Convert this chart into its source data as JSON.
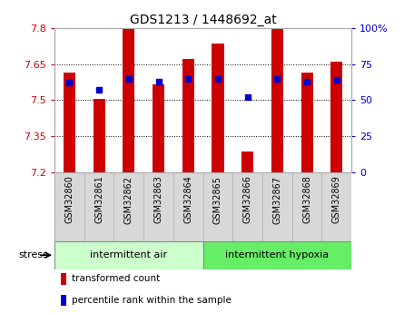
{
  "title": "GDS1213 / 1448692_at",
  "samples": [
    "GSM32860",
    "GSM32861",
    "GSM32862",
    "GSM32863",
    "GSM32864",
    "GSM32865",
    "GSM32866",
    "GSM32867",
    "GSM32868",
    "GSM32869"
  ],
  "bar_values": [
    7.615,
    7.505,
    7.795,
    7.565,
    7.67,
    7.735,
    7.285,
    7.795,
    7.615,
    7.66
  ],
  "blue_values": [
    62,
    57,
    65,
    63,
    65,
    65,
    52,
    65,
    63,
    64
  ],
  "ymin": 7.2,
  "ymax": 7.8,
  "yticks": [
    7.2,
    7.35,
    7.5,
    7.65,
    7.8
  ],
  "ytick_labels": [
    "7.2",
    "7.35",
    "7.5",
    "7.65",
    "7.8"
  ],
  "right_yticks": [
    0,
    25,
    50,
    75,
    100
  ],
  "right_ytick_labels": [
    "0",
    "25",
    "50",
    "75",
    "100%"
  ],
  "bar_color": "#cc0000",
  "blue_color": "#0000cc",
  "group1_label": "intermittent air",
  "group2_label": "intermittent hypoxia",
  "group1_color": "#ccffcc",
  "group2_color": "#66ee66",
  "group1_count": 5,
  "group2_count": 5,
  "stress_label": "stress",
  "legend_bar_label": "transformed count",
  "legend_blue_label": "percentile rank within the sample",
  "left_label_color": "#cc0000",
  "right_label_color": "#0000cc",
  "bar_width": 0.4,
  "tick_label_fontsize": 7,
  "axis_fontsize": 8,
  "title_fontsize": 10
}
